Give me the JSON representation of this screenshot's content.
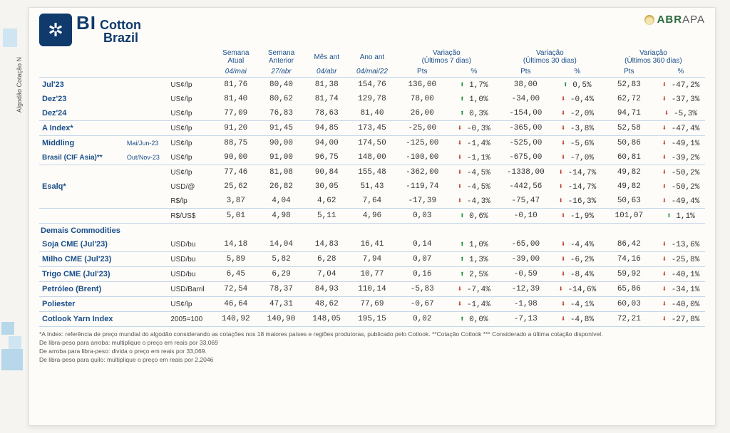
{
  "brand": {
    "bi": "BI",
    "l1": "Cotton",
    "l2": "Brazil",
    "abrapa": "ABRAPA"
  },
  "sidelabel": "Algodão\nCotação N",
  "headers": {
    "c1": "Semana Atual",
    "c2": "Semana Anterior",
    "c3": "Mês ant",
    "c4": "Ano ant",
    "g1": "Variação",
    "g1s": "(Últimos 7 dias)",
    "g2": "Variação",
    "g2s": "(Últimos 30 dias)",
    "g3": "Variação",
    "g3s": "(Últimos 360 dias)",
    "d1": "04/mai",
    "d2": "27/abr",
    "d3": "04/abr",
    "d4": "04/mai/22",
    "pts": "Pts",
    "pct": "%"
  },
  "units": {
    "uslp": "US¢/lp",
    "usdat": "USD/@",
    "rslp": "R$/lp",
    "rsusd": "R$/US$",
    "usdbu": "USD/bu",
    "usdbar": "USD/Barril",
    "base": "2005=100"
  },
  "rows": [
    {
      "lbl": "Jul'23",
      "sub": "",
      "unit": "uslp",
      "v": [
        "81,76",
        "80,40",
        "81,38",
        "154,76"
      ],
      "p": [
        [
          "136,00",
          "up",
          "1,7%"
        ],
        [
          "38,00",
          "up",
          "0,5%"
        ],
        [
          "52,83",
          "dn",
          "-47,2%"
        ]
      ]
    },
    {
      "lbl": "Dez'23",
      "sub": "",
      "unit": "uslp",
      "v": [
        "81,40",
        "80,62",
        "81,74",
        "129,78"
      ],
      "p": [
        [
          "78,00",
          "up",
          "1,0%"
        ],
        [
          "-34,00",
          "dn",
          "-0,4%"
        ],
        [
          "62,72",
          "dn",
          "-37,3%"
        ]
      ]
    },
    {
      "lbl": "Dez'24",
      "sub": "",
      "unit": "uslp",
      "v": [
        "77,09",
        "76,83",
        "78,63",
        "81,40"
      ],
      "p": [
        [
          "26,00",
          "up",
          "0,3%"
        ],
        [
          "-154,00",
          "dn",
          "-2,0%"
        ],
        [
          "94,71",
          "dn",
          "-5,3%"
        ]
      ],
      "sep": true
    },
    {
      "lbl": "A Index*",
      "sub": "",
      "unit": "uslp",
      "v": [
        "91,20",
        "91,45",
        "94,85",
        "173,45"
      ],
      "p": [
        [
          "-25,00",
          "dn",
          "-0,3%"
        ],
        [
          "-365,00",
          "dn",
          "-3,8%"
        ],
        [
          "52,58",
          "dn",
          "-47,4%"
        ]
      ],
      "sep": true
    },
    {
      "lbl": "Middling",
      "sub": "Mai/Jun-23",
      "unit": "uslp",
      "v": [
        "88,75",
        "90,00",
        "94,00",
        "174,50"
      ],
      "p": [
        [
          "-125,00",
          "dn",
          "-1,4%"
        ],
        [
          "-525,00",
          "dn",
          "-5,6%"
        ],
        [
          "50,86",
          "dn",
          "-49,1%"
        ]
      ]
    },
    {
      "lbl": "Brasil (CIF Asia)**",
      "sub": "Out/Nov-23",
      "unit": "uslp",
      "v": [
        "90,00",
        "91,00",
        "96,75",
        "148,00"
      ],
      "p": [
        [
          "-100,00",
          "dn",
          "-1,1%"
        ],
        [
          "-675,00",
          "dn",
          "-7,0%"
        ],
        [
          "60,81",
          "dn",
          "-39,2%"
        ]
      ],
      "sep": true,
      "lbl2": true
    },
    {
      "lbl": "",
      "sub": "",
      "unit": "uslp",
      "v": [
        "77,46",
        "81,08",
        "90,84",
        "155,48"
      ],
      "p": [
        [
          "-362,00",
          "dn",
          "-4,5%"
        ],
        [
          "-1338,00",
          "dn",
          "-14,7%"
        ],
        [
          "49,82",
          "dn",
          "-50,2%"
        ]
      ]
    },
    {
      "lbl": "Esalq*",
      "sub": "",
      "unit": "usdat",
      "v": [
        "25,62",
        "26,82",
        "30,05",
        "51,43"
      ],
      "p": [
        [
          "-119,74",
          "dn",
          "-4,5%"
        ],
        [
          "-442,56",
          "dn",
          "-14,7%"
        ],
        [
          "49,82",
          "dn",
          "-50,2%"
        ]
      ]
    },
    {
      "lbl": "",
      "sub": "",
      "unit": "rslp",
      "v": [
        "3,87",
        "4,04",
        "4,62",
        "7,64"
      ],
      "p": [
        [
          "-17,39",
          "dn",
          "-4,3%"
        ],
        [
          "-75,47",
          "dn",
          "-16,3%"
        ],
        [
          "50,63",
          "dn",
          "-49,4%"
        ]
      ],
      "sep": true
    },
    {
      "lbl": "",
      "sub": "",
      "unit": "rsusd",
      "v": [
        "5,01",
        "4,98",
        "5,11",
        "4,96"
      ],
      "p": [
        [
          "0,03",
          "up",
          "0,6%"
        ],
        [
          "-0,10",
          "dn",
          "-1,9%"
        ],
        [
          "101,07",
          "up",
          "1,1%"
        ]
      ],
      "sep": true
    }
  ],
  "section": "Demais Commodities",
  "rows2": [
    {
      "lbl": "Soja CME (Jul'23)",
      "unit": "usdbu",
      "v": [
        "14,18",
        "14,04",
        "14,83",
        "16,41"
      ],
      "p": [
        [
          "0,14",
          "up",
          "1,0%"
        ],
        [
          "-65,00",
          "dn",
          "-4,4%"
        ],
        [
          "86,42",
          "dn",
          "-13,6%"
        ]
      ],
      "sep": true
    },
    {
      "lbl": "Milho CME (Jul'23)",
      "unit": "usdbu",
      "v": [
        "5,89",
        "5,82",
        "6,28",
        "7,94"
      ],
      "p": [
        [
          "0,07",
          "up",
          "1,3%"
        ],
        [
          "-39,00",
          "dn",
          "-6,2%"
        ],
        [
          "74,16",
          "dn",
          "-25,8%"
        ]
      ],
      "sep": true
    },
    {
      "lbl": "Trigo CME (Jul'23)",
      "unit": "usdbu",
      "v": [
        "6,45",
        "6,29",
        "7,04",
        "10,77"
      ],
      "p": [
        [
          "0,16",
          "up",
          "2,5%"
        ],
        [
          "-0,59",
          "dn",
          "-8,4%"
        ],
        [
          "59,92",
          "dn",
          "-40,1%"
        ]
      ],
      "sep": true
    },
    {
      "lbl": "Petróleo (Brent)",
      "unit": "usdbar",
      "v": [
        "72,54",
        "78,37",
        "84,93",
        "110,14"
      ],
      "p": [
        [
          "-5,83",
          "dn",
          "-7,4%"
        ],
        [
          "-12,39",
          "dn",
          "-14,6%"
        ],
        [
          "65,86",
          "dn",
          "-34,1%"
        ]
      ],
      "sep": true
    },
    {
      "lbl": "Poliester",
      "unit": "uslp",
      "v": [
        "46,64",
        "47,31",
        "48,62",
        "77,69"
      ],
      "p": [
        [
          "-0,67",
          "dn",
          "-1,4%"
        ],
        [
          "-1,98",
          "dn",
          "-4,1%"
        ],
        [
          "60,03",
          "dn",
          "-40,0%"
        ]
      ],
      "sep": true
    },
    {
      "lbl": "Cotlook Yarn Index",
      "unit": "base",
      "v": [
        "140,92",
        "140,90",
        "148,05",
        "195,15"
      ],
      "p": [
        [
          "0,02",
          "up",
          "0,0%"
        ],
        [
          "-7,13",
          "dn",
          "-4,8%"
        ],
        [
          "72,21",
          "dn",
          "-27,8%"
        ]
      ],
      "sep": true
    }
  ],
  "foot": [
    "*A Index: referência de preço mundial do algodão considerando as cotações nos 18 maiores países e regiões produtoras, publicado pelo Cotlook. **Cotação Cotlook *** Considerado a última cotação disponível.",
    "De libra-peso para arroba: multiplique o preço em reais por 33,069",
    "De arroba para libra-peso: divida o preço em reais por 33,069.",
    "De libra-peso para quilo: multiplique o preço em reais por 2,2046"
  ]
}
